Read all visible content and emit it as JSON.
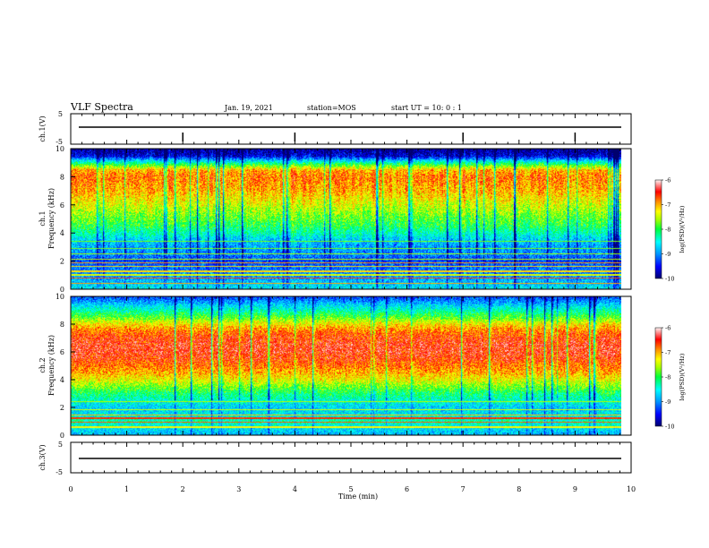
{
  "header": {
    "title": "VLF Spectra",
    "date": "Jan. 19, 2021",
    "station": "station=MOS",
    "start": "start UT =  10: 0 : 1"
  },
  "colors": {
    "background": "#ffffff",
    "axes": "#000000",
    "colormap": [
      "#000080",
      "#0000ff",
      "#00a0ff",
      "#00ffff",
      "#00ff40",
      "#a0ff00",
      "#ffff00",
      "#ff8000",
      "#ff0000",
      "#ffffff"
    ]
  },
  "chart_data": [
    {
      "type": "line",
      "ylabel": "ch.1(V)",
      "ylim": [
        -5,
        5
      ],
      "ytick_labels": [
        "5",
        "-5"
      ],
      "x": [
        0,
        10
      ],
      "y": [
        0,
        0
      ]
    },
    {
      "type": "heatmap",
      "ylabel": "ch.1\nFrequency (kHz)",
      "ylabel_channel": "ch.1",
      "ylabel_freq": "Frequency (kHz)",
      "ylim": [
        0,
        10
      ],
      "ytick_labels": [
        "0",
        "2",
        "4",
        "6",
        "8",
        "10"
      ],
      "xlim": [
        0,
        9.85
      ],
      "colorbar": {
        "label": "log(PSD)(V²/Hz)",
        "range": [
          -10,
          -6
        ],
        "tick_labels": [
          "-6",
          "-7",
          "-8",
          "-9",
          "-10"
        ]
      },
      "profile": {
        "freq_khz": [
          0,
          0.5,
          1,
          1.5,
          2,
          2.5,
          3,
          3.5,
          4,
          4.5,
          5,
          5.5,
          6,
          6.5,
          7,
          7.5,
          8,
          8.5,
          9,
          9.5,
          10
        ],
        "log_psd": [
          -8.6,
          -8.8,
          -9.0,
          -9.1,
          -9.3,
          -9.0,
          -8.9,
          -8.7,
          -8.3,
          -8.0,
          -7.8,
          -7.6,
          -7.4,
          -7.2,
          -7.0,
          -6.9,
          -6.8,
          -7.0,
          -8.2,
          -9.6,
          -9.9
        ]
      }
    },
    {
      "type": "heatmap",
      "ylabel": "ch.2\nFrequency (kHz)",
      "ylabel_channel": "ch.2",
      "ylabel_freq": "Frequency (kHz)",
      "ylim": [
        0,
        10
      ],
      "ytick_labels": [
        "0",
        "2",
        "4",
        "6",
        "8",
        "10"
      ],
      "xlim": [
        0,
        9.85
      ],
      "colorbar": {
        "label": "log(PSD)(V²/Hz)",
        "range": [
          -10,
          -6
        ],
        "tick_labels": [
          "-6",
          "-7",
          "-8",
          "-9",
          "-10"
        ]
      },
      "profile": {
        "freq_khz": [
          0,
          0.5,
          1,
          1.5,
          2,
          2.5,
          3,
          3.5,
          4,
          4.5,
          5,
          5.5,
          6,
          6.5,
          7,
          7.5,
          8,
          8.5,
          9,
          9.5,
          10
        ],
        "log_psd": [
          -8.8,
          -8.6,
          -8.3,
          -8.6,
          -8.7,
          -8.4,
          -8.1,
          -7.7,
          -7.3,
          -7.0,
          -6.8,
          -6.6,
          -6.5,
          -6.5,
          -6.6,
          -6.8,
          -7.2,
          -7.8,
          -8.3,
          -8.8,
          -9.3
        ]
      }
    },
    {
      "type": "line",
      "ylabel": "ch.3(V)",
      "ylim": [
        -5,
        5
      ],
      "ytick_labels": [
        "5",
        "-5"
      ],
      "x": [
        0,
        10
      ],
      "y": [
        0,
        0
      ]
    }
  ],
  "xaxis": {
    "label": "Time (min)",
    "xlim": [
      0,
      10
    ],
    "tick_labels": [
      "0",
      "1",
      "2",
      "3",
      "4",
      "5",
      "6",
      "7",
      "8",
      "9",
      "10"
    ]
  }
}
